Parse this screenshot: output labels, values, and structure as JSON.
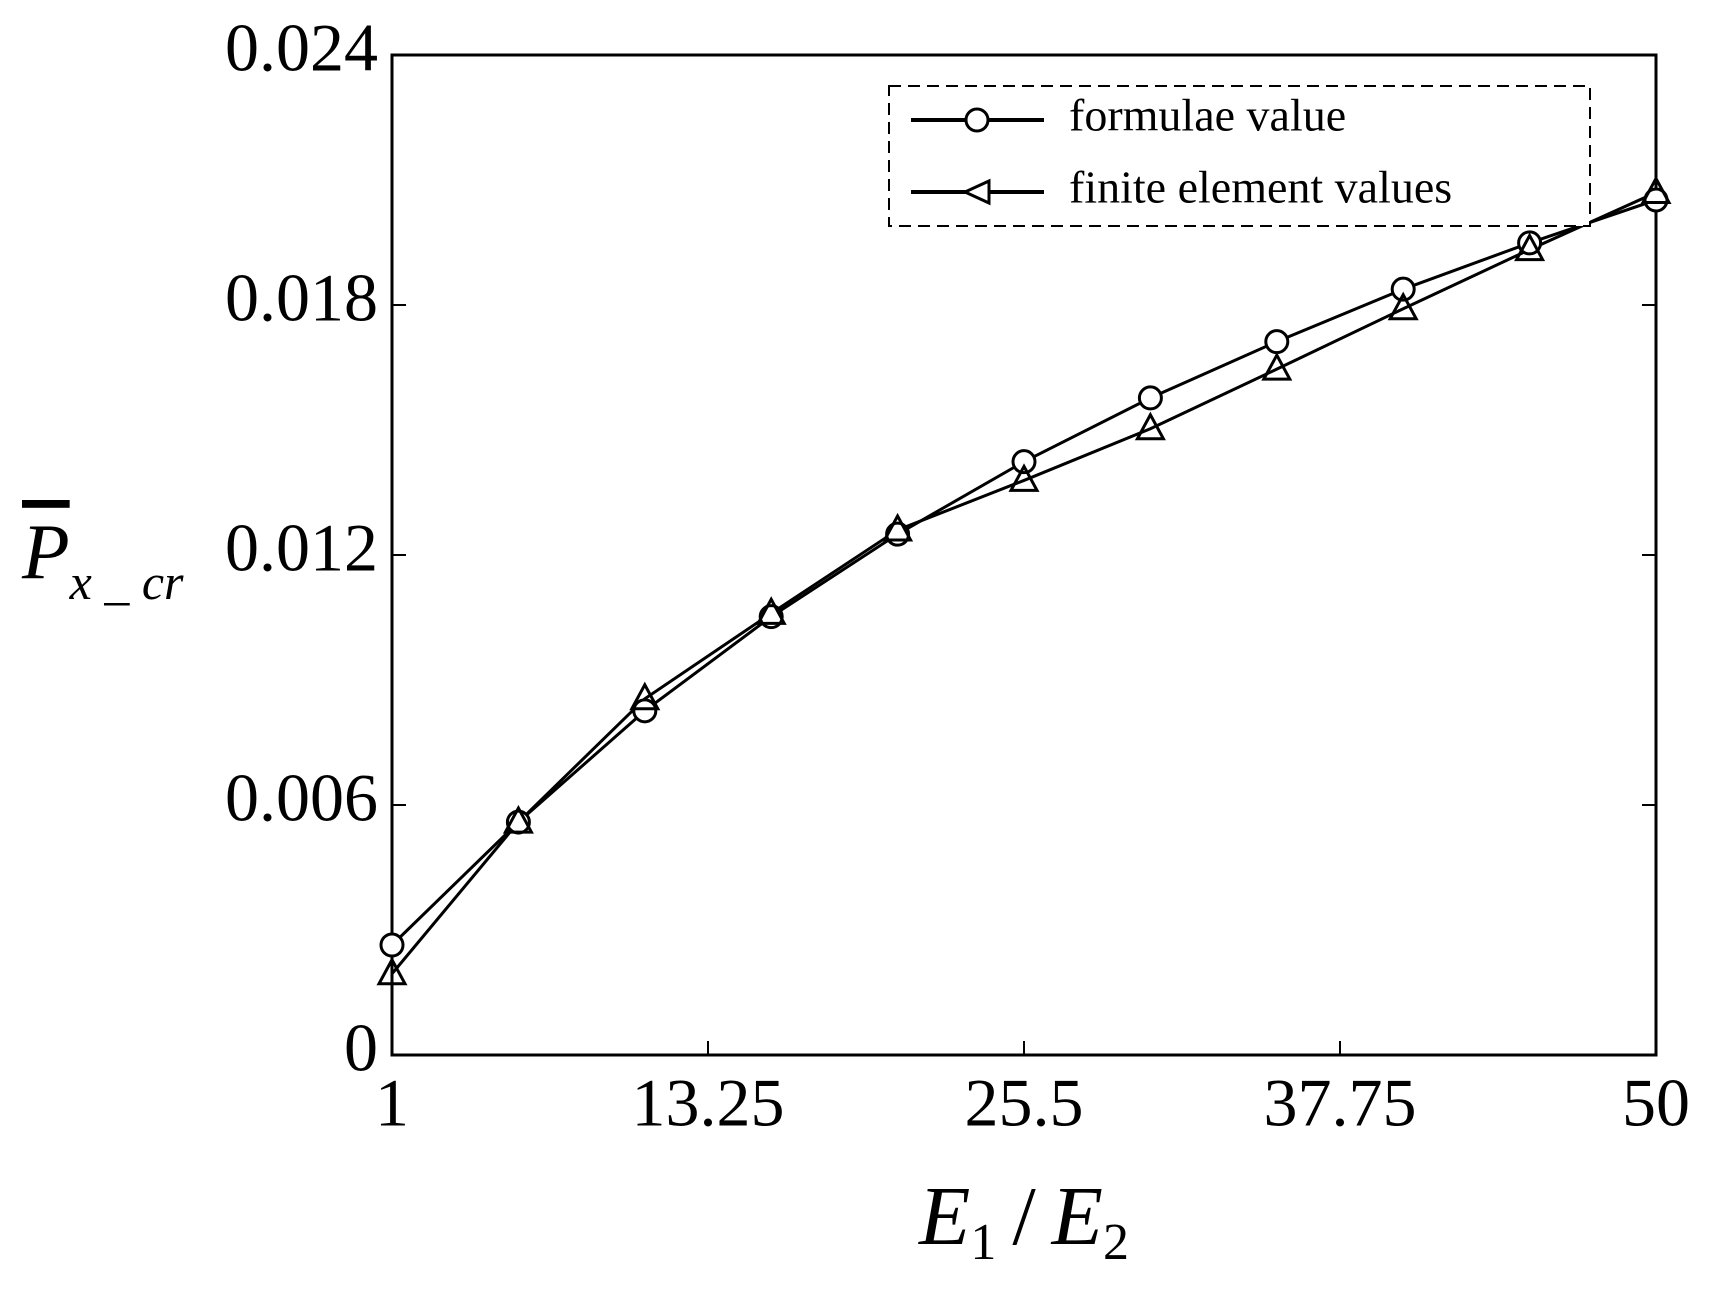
{
  "chart_data": {
    "type": "line",
    "xlabel": [
      "E",
      "1",
      "/",
      "E",
      "2"
    ],
    "ylabel": [
      "P",
      "x _ cr"
    ],
    "x": [
      1,
      5.9,
      10.8,
      15.7,
      20.6,
      25.5,
      30.4,
      35.3,
      40.2,
      45.1,
      50
    ],
    "series": [
      {
        "name": "formulae value",
        "color": "#000000",
        "marker": "circle",
        "values": [
          0.00264,
          0.00559,
          0.00826,
          0.01052,
          0.0125,
          0.01424,
          0.01577,
          0.01712,
          0.01838,
          0.01949,
          0.02052
        ]
      },
      {
        "name": "finite element values",
        "color": "#000000",
        "marker": "triangle",
        "values": [
          0.00195,
          0.00559,
          0.00855,
          0.0106,
          0.0126,
          0.01379,
          0.01503,
          0.01646,
          0.01791,
          0.01933,
          0.0207
        ]
      }
    ],
    "xlim": [
      1,
      50
    ],
    "xticks": [
      1,
      13.25,
      25.5,
      37.75,
      50
    ],
    "ylim": [
      0,
      0.024
    ],
    "yticks": [
      0,
      0.006,
      0.012,
      0.018,
      0.024
    ],
    "grid": false,
    "legend": "upper right"
  }
}
